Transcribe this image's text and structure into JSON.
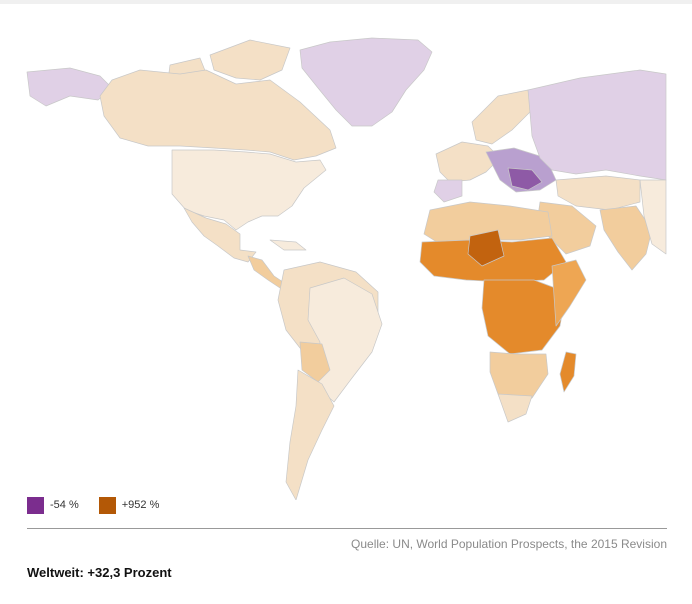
{
  "legend": {
    "min_label": "-54 %",
    "max_label": "+952 %",
    "min_color": "#7b2d8e",
    "max_color": "#b35806"
  },
  "source": "Quelle: UN, World Population Prospects, the 2015 Revision",
  "summary": "Weltweit: +32,3 Prozent",
  "map_colors": {
    "ocean": "#ffffff",
    "strong_decline": "#8e5aa6",
    "decline": "#b9a0cf",
    "slight_decline": "#e0d0e6",
    "neutral": "#f7ebdc",
    "slight_growth": "#f4e0c6",
    "growth": "#f2cd9d",
    "high_growth": "#eea653",
    "very_high_growth": "#e48a2b",
    "extreme_growth": "#c2630f",
    "border": "#bbbbbb"
  }
}
